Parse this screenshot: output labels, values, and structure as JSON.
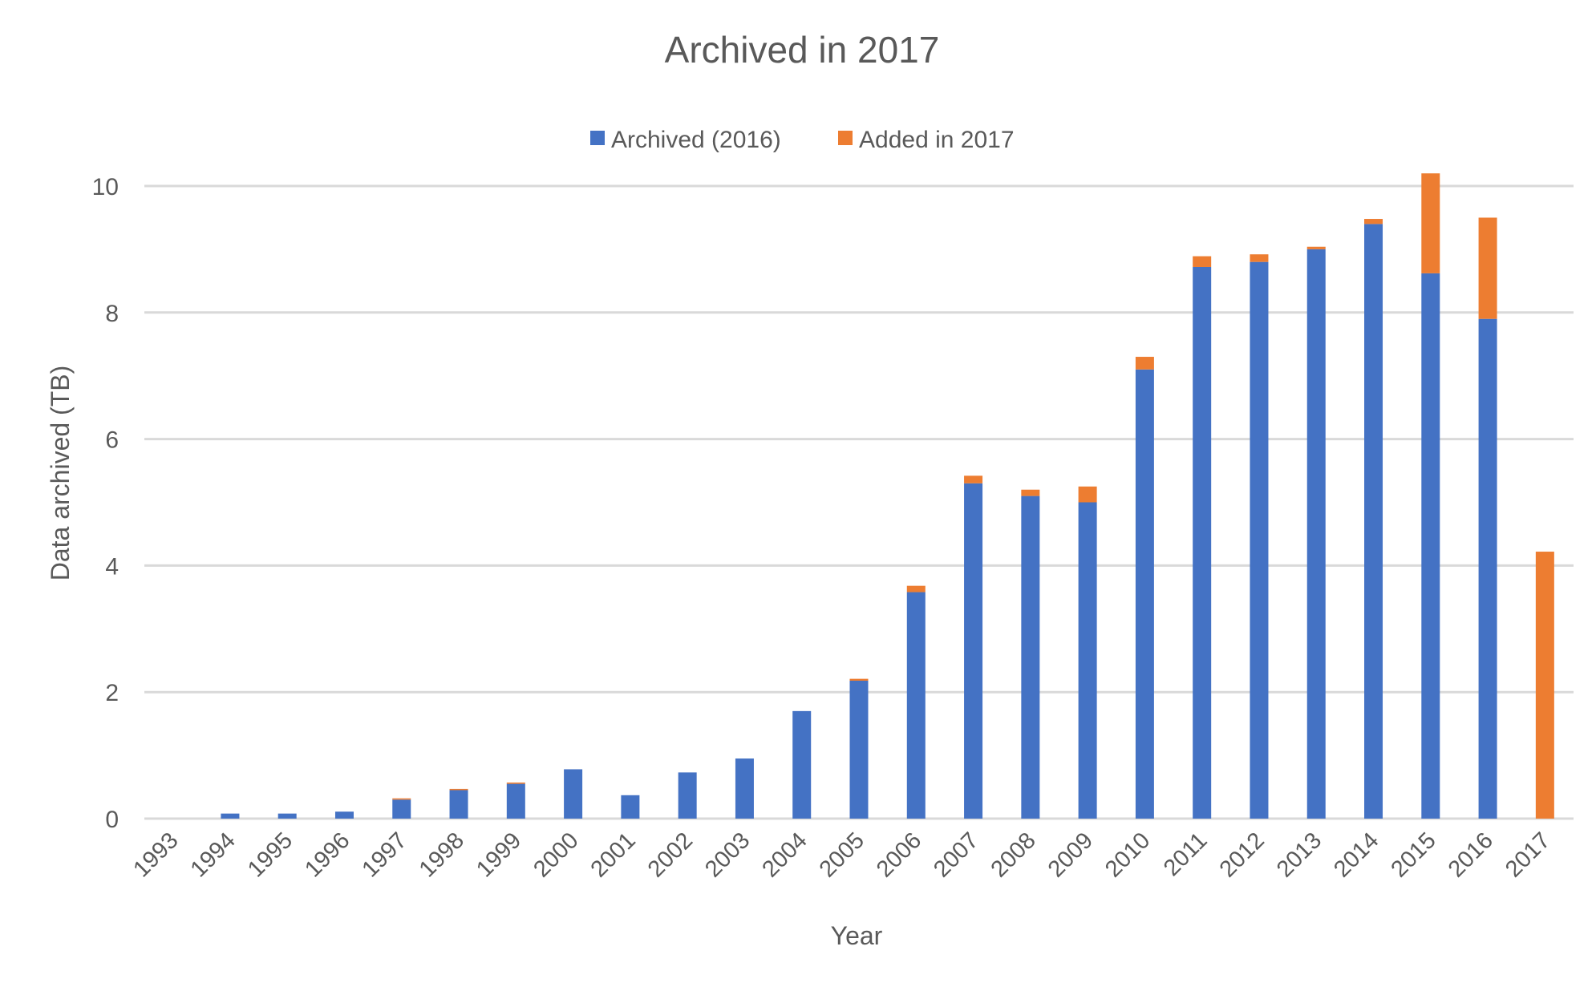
{
  "chart_data": {
    "type": "bar",
    "stacked": true,
    "title": "Archived in 2017",
    "xlabel": "Year",
    "ylabel": "Data archived (TB)",
    "ylim": [
      0,
      10
    ],
    "yticks": [
      0,
      2,
      4,
      6,
      8,
      10
    ],
    "grid": true,
    "legend_position": "top",
    "categories": [
      "1993",
      "1994",
      "1995",
      "1996",
      "1997",
      "1998",
      "1999",
      "2000",
      "2001",
      "2002",
      "2003",
      "2004",
      "2005",
      "2006",
      "2007",
      "2008",
      "2009",
      "2010",
      "2011",
      "2012",
      "2013",
      "2014",
      "2015",
      "2016",
      "2017"
    ],
    "series": [
      {
        "name": "Archived (2016)",
        "color": "#4472C4",
        "values": [
          0,
          0.08,
          0.08,
          0.11,
          0.3,
          0.45,
          0.55,
          0.78,
          0.37,
          0.73,
          0.95,
          1.7,
          2.18,
          3.58,
          5.3,
          5.1,
          5.0,
          7.1,
          8.72,
          8.8,
          9.0,
          9.4,
          8.62,
          7.9,
          0
        ]
      },
      {
        "name": "Added in 2017",
        "color": "#ED7D31",
        "values": [
          0,
          0,
          0,
          0,
          0.02,
          0.02,
          0.02,
          0,
          0,
          0,
          0,
          0,
          0.03,
          0.1,
          0.12,
          0.1,
          0.25,
          0.2,
          0.17,
          0.12,
          0.04,
          0.08,
          1.58,
          1.6,
          4.22
        ]
      }
    ]
  }
}
